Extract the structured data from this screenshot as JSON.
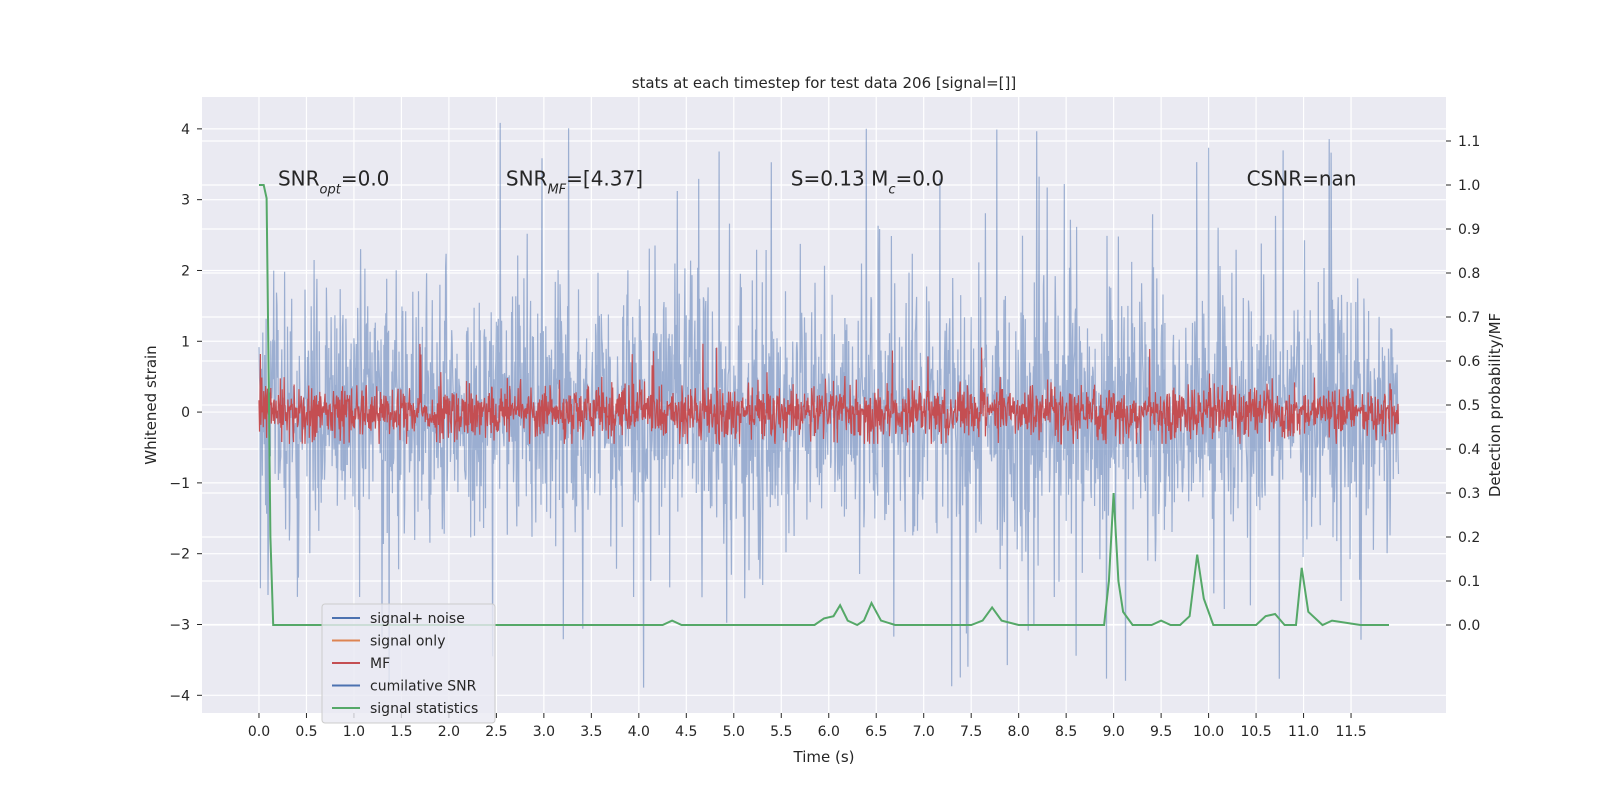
{
  "chart_data": {
    "type": "line",
    "title": "stats at each timestep for test data 206 [signal=[]]",
    "xlabel": "Time (s)",
    "ylabel": "Whitened strain",
    "ylabel_right": "Detection probability/MF",
    "xlim": [
      -0.6,
      12.5
    ],
    "ylim": [
      -4.25,
      4.45
    ],
    "ylim_right": [
      -0.2,
      1.2
    ],
    "xticks": [
      "0.0",
      "0.5",
      "1.0",
      "1.5",
      "2.0",
      "2.5",
      "3.0",
      "3.5",
      "4.0",
      "4.5",
      "5.0",
      "5.5",
      "6.0",
      "6.5",
      "7.0",
      "7.5",
      "8.0",
      "8.5",
      "9.0",
      "9.5",
      "10.0",
      "10.5",
      "11.0",
      "11.5"
    ],
    "yticks": [
      "4",
      "3",
      "2",
      "1",
      "0",
      "−1",
      "−2",
      "−3",
      "−4"
    ],
    "yticks_right": [
      "1.1",
      "1.0",
      "0.9",
      "0.8",
      "0.7",
      "0.6",
      "0.5",
      "0.4",
      "0.3",
      "0.2",
      "0.1",
      "0.0"
    ],
    "grid": true,
    "legend_position": "lower-left",
    "annotations": [
      {
        "label": "SNR_opt=0.0",
        "x": 0.2,
        "y": 3.3
      },
      {
        "label": "SNR_MF=[4.37]",
        "x": 2.6,
        "y": 3.3
      },
      {
        "label": "S=0.13   M_c=0.0",
        "x": 5.6,
        "y": 3.3
      },
      {
        "label": "CSNR=nan",
        "x": 10.4,
        "y": 3.3
      }
    ],
    "series": [
      {
        "name": "signal+ noise",
        "color": "#4c72b0",
        "axis": "left",
        "kind": "noise",
        "x_range": [
          0,
          12
        ],
        "amplitude_std": 0.95,
        "peak_max": 4.1,
        "peak_min": -3.9
      },
      {
        "name": "signal only",
        "color": "#dd8452",
        "axis": "left",
        "kind": "empty",
        "values": []
      },
      {
        "name": "MF",
        "color": "#c44e52",
        "axis": "left",
        "kind": "noise",
        "x_range": [
          0,
          12
        ],
        "amplitude_std": 0.2,
        "peak_max": 1.0,
        "peak_min": -0.45
      },
      {
        "name": "cumilative SNR",
        "color": "#4c72b0",
        "axis": "left",
        "kind": "empty",
        "values": []
      },
      {
        "name": "signal statistics",
        "color": "#55a868",
        "axis": "right",
        "kind": "line",
        "x": [
          0.0,
          0.05,
          0.08,
          0.1,
          0.12,
          0.15,
          0.3,
          0.8,
          1.5,
          2.5,
          3.3,
          3.5,
          4.0,
          4.25,
          4.35,
          4.45,
          4.6,
          5.0,
          5.5,
          5.85,
          5.95,
          6.05,
          6.12,
          6.2,
          6.3,
          6.37,
          6.45,
          6.55,
          6.7,
          7.0,
          7.5,
          7.62,
          7.72,
          7.82,
          8.0,
          8.5,
          8.9,
          8.95,
          9.0,
          9.05,
          9.1,
          9.2,
          9.4,
          9.5,
          9.6,
          9.7,
          9.8,
          9.88,
          9.95,
          10.05,
          10.3,
          10.5,
          10.6,
          10.7,
          10.8,
          10.92,
          10.98,
          11.05,
          11.2,
          11.3,
          11.6,
          11.9
        ],
        "y": [
          1.0,
          1.0,
          0.97,
          0.6,
          0.2,
          0.0,
          0.0,
          0.0,
          0.0,
          0.0,
          0.0,
          0.0,
          0.0,
          0.0,
          0.01,
          0.0,
          0.0,
          0.0,
          0.0,
          0.0,
          0.015,
          0.02,
          0.045,
          0.01,
          0.0,
          0.01,
          0.05,
          0.01,
          0.0,
          0.0,
          0.0,
          0.01,
          0.04,
          0.01,
          0.0,
          0.0,
          0.0,
          0.1,
          0.3,
          0.1,
          0.03,
          0.0,
          0.0,
          0.01,
          0.0,
          0.0,
          0.02,
          0.16,
          0.06,
          0.0,
          0.0,
          0.0,
          0.02,
          0.025,
          0.0,
          0.0,
          0.13,
          0.03,
          0.0,
          0.01,
          0.0,
          0.0
        ]
      }
    ]
  }
}
